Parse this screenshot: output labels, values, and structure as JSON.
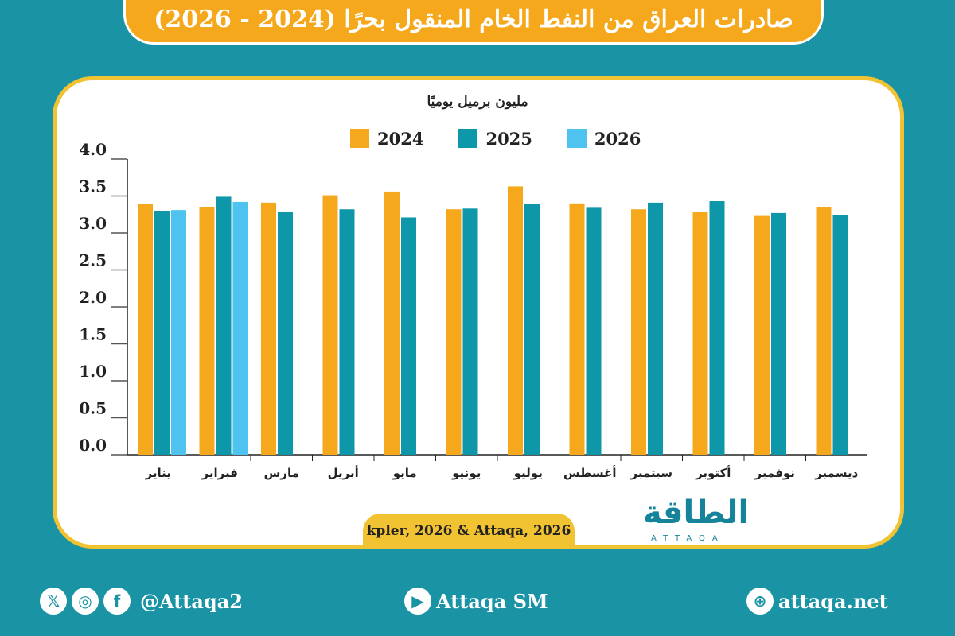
{
  "title": "صادرات العراق من النفط الخام المنقول بحرًا (2024 - 2026)",
  "source": "kpler, 2026 & Attaqa, 2026",
  "logo": {
    "text": "الطاقة",
    "sub": "ATTAQA"
  },
  "footer": {
    "social_handle": "@Attaqa2",
    "youtube": "Attaqa SM",
    "website": "attaqa.net"
  },
  "colors": {
    "background": "#1a93a5",
    "title": "#f6a81c",
    "s2024": "#f6a81c",
    "s2025": "#0d97a8",
    "s2026": "#4fc3ef"
  },
  "chart_data": {
    "type": "bar",
    "ylabel": "مليون برميل يوميًا",
    "ylim": [
      0,
      4.0
    ],
    "yticks": [
      "0.0",
      "0.5",
      "1.0",
      "1.5",
      "2.0",
      "2.5",
      "3.0",
      "3.5",
      "4.0"
    ],
    "grid": false,
    "legend": "top",
    "categories": [
      "يناير",
      "فبراير",
      "مارس",
      "أبريل",
      "مايو",
      "يونيو",
      "يوليو",
      "أغسطس",
      "سبتمبر",
      "أكتوبر",
      "نوفمبر",
      "ديسمبر"
    ],
    "series": [
      {
        "name": "2024",
        "values": [
          3.39,
          3.35,
          3.41,
          3.51,
          3.56,
          3.32,
          3.63,
          3.4,
          3.32,
          3.28,
          3.23,
          3.35
        ]
      },
      {
        "name": "2025",
        "values": [
          3.3,
          3.49,
          3.28,
          3.32,
          3.21,
          3.33,
          3.39,
          3.34,
          3.41,
          3.43,
          3.27,
          3.24
        ]
      },
      {
        "name": "2026",
        "values": [
          3.31,
          3.42,
          null,
          null,
          null,
          null,
          null,
          null,
          null,
          null,
          null,
          null
        ]
      }
    ]
  }
}
